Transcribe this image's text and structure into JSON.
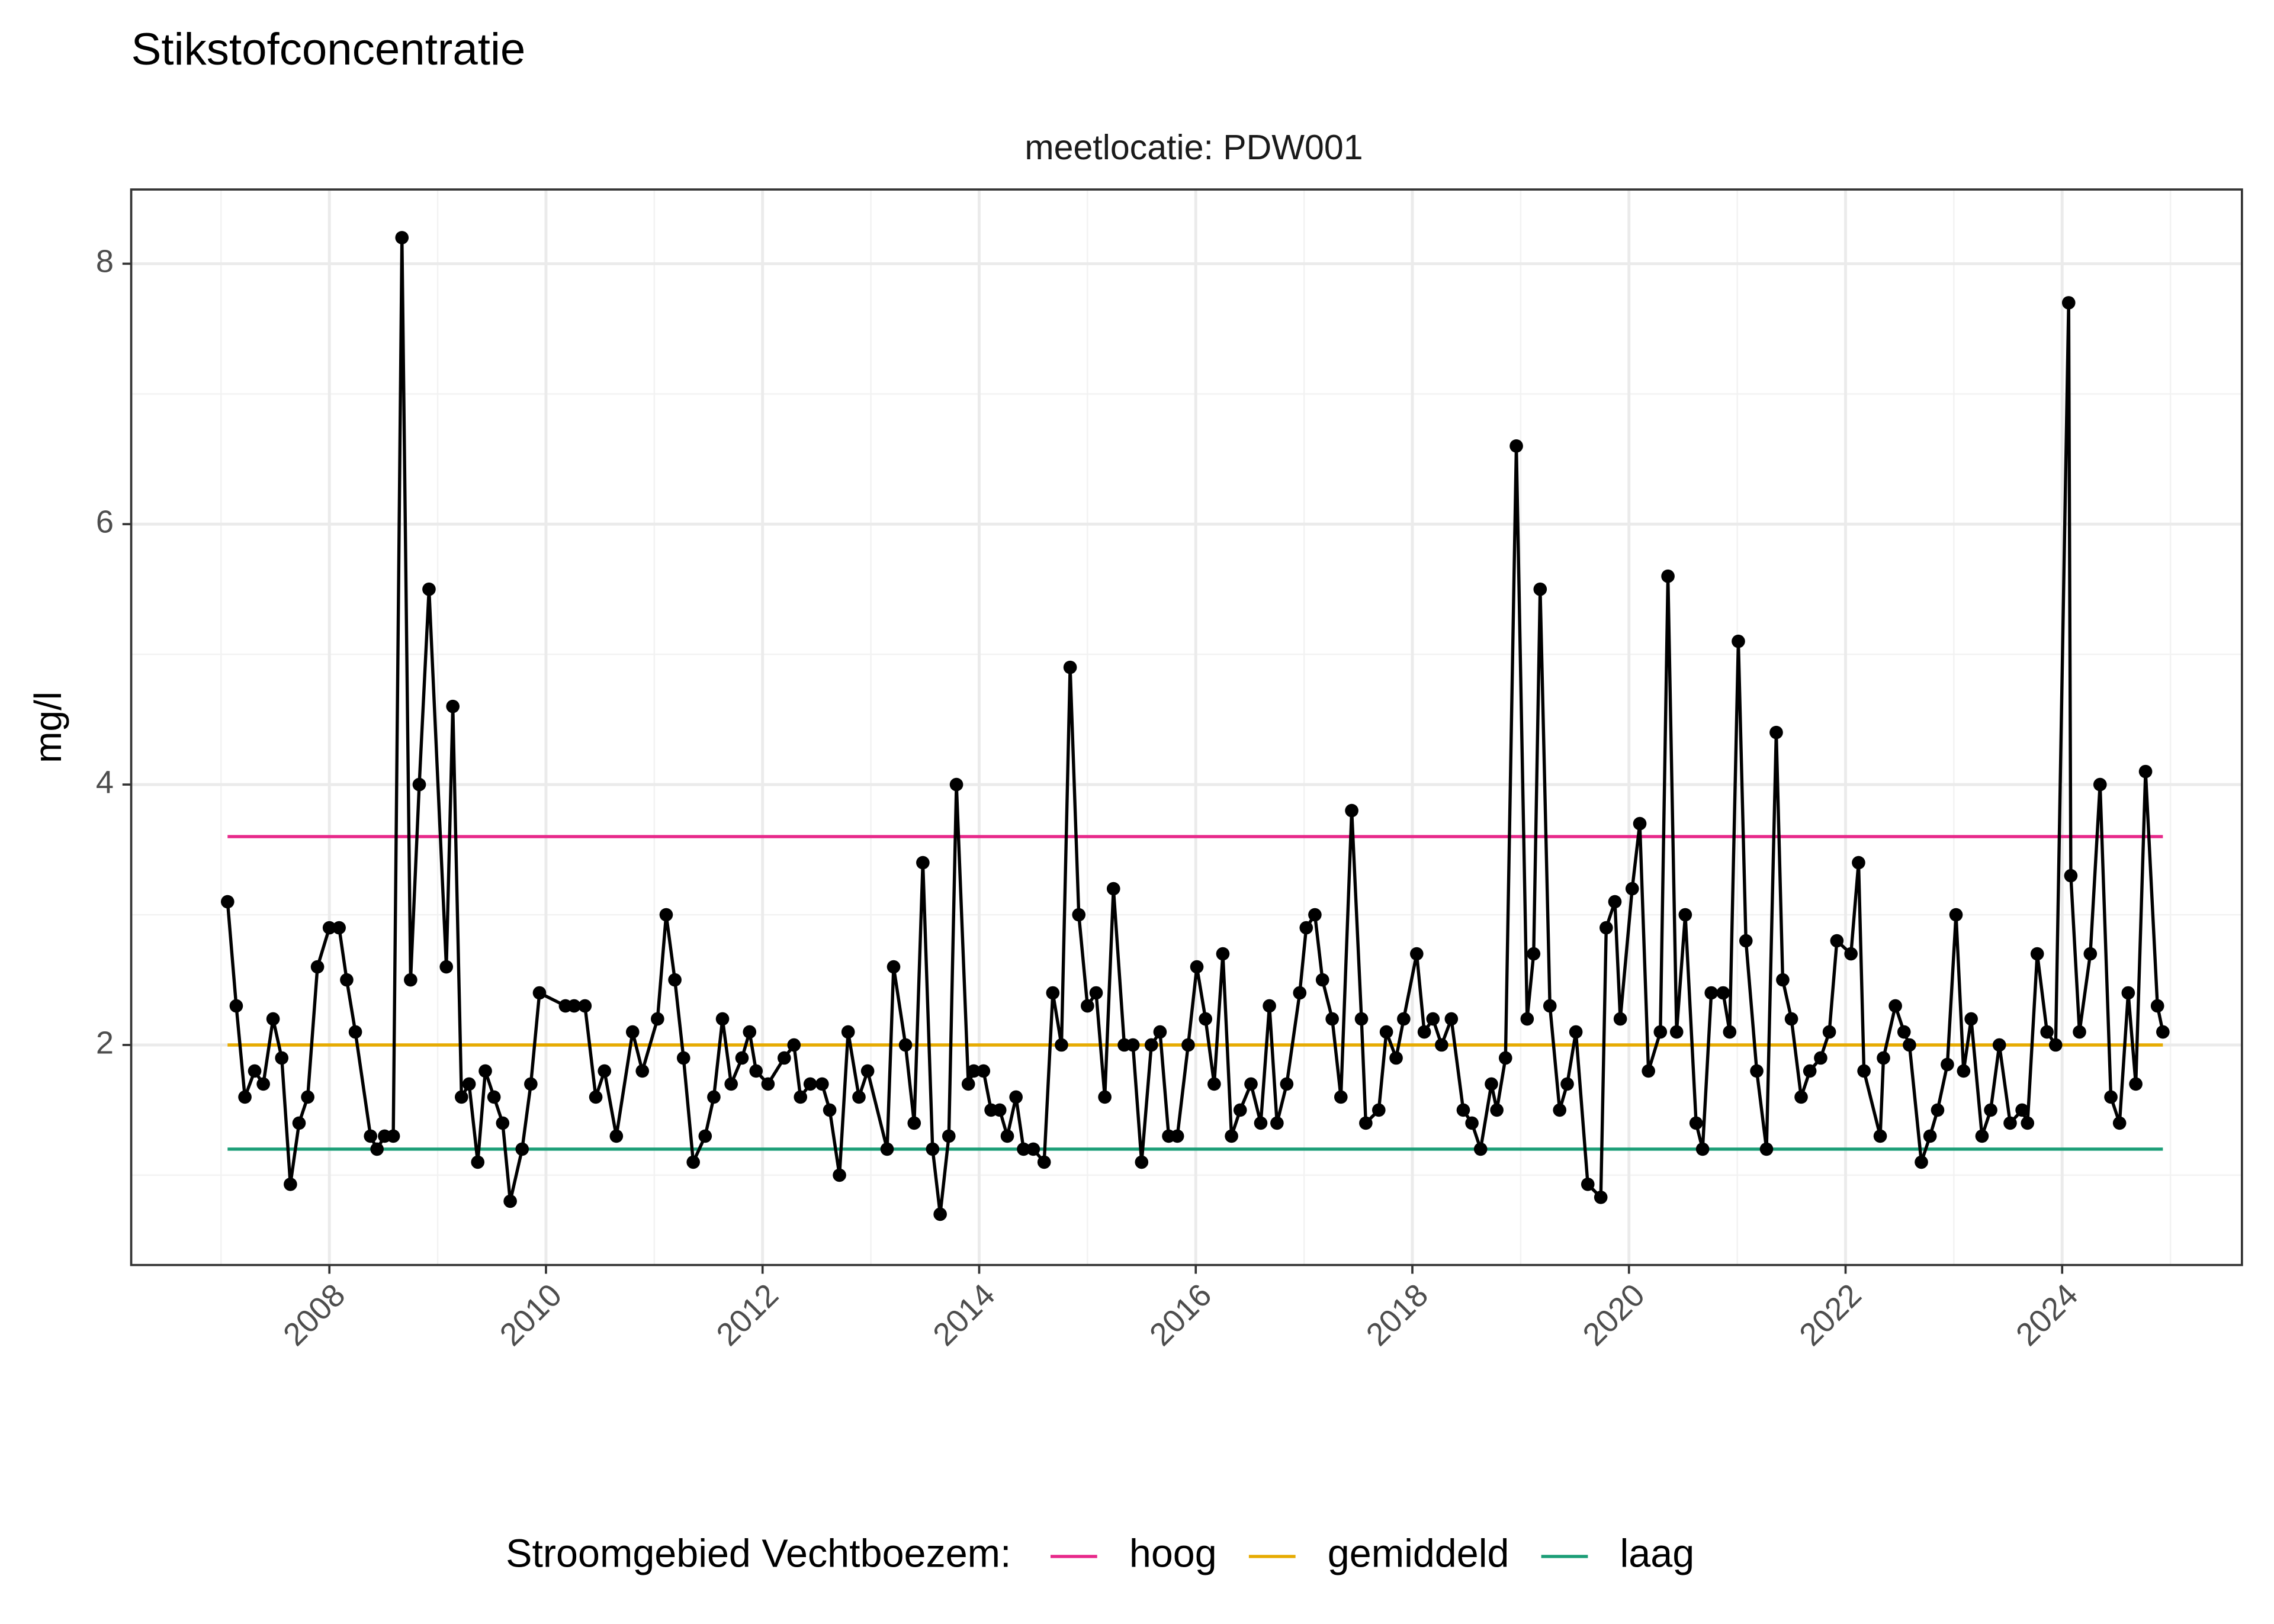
{
  "chart_data": {
    "type": "line",
    "title": "Stikstofconcentratie",
    "subtitle": "meetlocatie: PDW001",
    "y_label": "mg/l",
    "legend_title": "Stroomgebied Vechtboezem:",
    "legend_position": "bottom",
    "grid": true,
    "xlim": [
      2006.17,
      2025.66
    ],
    "ylim": [
      0.31,
      8.57
    ],
    "xticks": [
      2008,
      2010,
      2012,
      2014,
      2016,
      2018,
      2020,
      2022,
      2024
    ],
    "yticks": [
      2,
      4,
      6,
      8
    ],
    "x": [
      2007.06,
      2007.14,
      2007.22,
      2007.31,
      2007.39,
      2007.48,
      2007.56,
      2007.64,
      2007.72,
      2007.8,
      2007.89,
      2008.0,
      2008.09,
      2008.16,
      2008.24,
      2008.38,
      2008.44,
      2008.51,
      2008.59,
      2008.67,
      2008.75,
      2008.83,
      2008.92,
      2009.08,
      2009.14,
      2009.22,
      2009.29,
      2009.37,
      2009.44,
      2009.52,
      2009.6,
      2009.67,
      2009.78,
      2009.86,
      2009.94,
      2010.18,
      2010.26,
      2010.36,
      2010.46,
      2010.54,
      2010.65,
      2010.8,
      2010.89,
      2011.03,
      2011.11,
      2011.19,
      2011.27,
      2011.36,
      2011.47,
      2011.55,
      2011.63,
      2011.71,
      2011.81,
      2011.88,
      2011.94,
      2012.05,
      2012.2,
      2012.29,
      2012.35,
      2012.44,
      2012.55,
      2012.62,
      2012.71,
      2012.79,
      2012.89,
      2012.97,
      2013.15,
      2013.21,
      2013.32,
      2013.4,
      2013.48,
      2013.57,
      2013.64,
      2013.72,
      2013.79,
      2013.9,
      2013.95,
      2014.04,
      2014.11,
      2014.19,
      2014.26,
      2014.34,
      2014.41,
      2014.5,
      2014.6,
      2014.68,
      2014.76,
      2014.84,
      2014.92,
      2015.0,
      2015.08,
      2015.16,
      2015.24,
      2015.34,
      2015.42,
      2015.5,
      2015.59,
      2015.67,
      2015.75,
      2015.83,
      2015.93,
      2016.01,
      2016.09,
      2016.17,
      2016.25,
      2016.33,
      2016.41,
      2016.51,
      2016.6,
      2016.68,
      2016.75,
      2016.84,
      2016.96,
      2017.02,
      2017.1,
      2017.17,
      2017.26,
      2017.34,
      2017.44,
      2017.53,
      2017.57,
      2017.69,
      2017.76,
      2017.85,
      2017.92,
      2018.04,
      2018.11,
      2018.19,
      2018.27,
      2018.36,
      2018.47,
      2018.55,
      2018.63,
      2018.73,
      2018.78,
      2018.86,
      2018.96,
      2019.06,
      2019.12,
      2019.18,
      2019.27,
      2019.36,
      2019.43,
      2019.51,
      2019.62,
      2019.74,
      2019.79,
      2019.87,
      2019.92,
      2020.03,
      2020.1,
      2020.18,
      2020.29,
      2020.36,
      2020.44,
      2020.52,
      2020.62,
      2020.68,
      2020.76,
      2020.87,
      2020.93,
      2021.01,
      2021.08,
      2021.18,
      2021.27,
      2021.36,
      2021.42,
      2021.5,
      2021.59,
      2021.67,
      2021.77,
      2021.85,
      2021.92,
      2022.05,
      2022.12,
      2022.17,
      2022.32,
      2022.35,
      2022.46,
      2022.54,
      2022.59,
      2022.7,
      2022.78,
      2022.85,
      2022.94,
      2023.02,
      2023.09,
      2023.16,
      2023.26,
      2023.34,
      2023.42,
      2023.52,
      2023.63,
      2023.68,
      2023.77,
      2023.86,
      2023.94,
      2024.06,
      2024.08,
      2024.16,
      2024.26,
      2024.35,
      2024.45,
      2024.53,
      2024.61,
      2024.68,
      2024.77,
      2024.88,
      2024.93
    ],
    "series": [
      {
        "color": "#000000",
        "values": [
          3.1,
          2.3,
          1.6,
          1.8,
          1.7,
          2.2,
          1.9,
          0.93,
          1.4,
          1.6,
          2.6,
          2.9,
          2.9,
          2.5,
          2.1,
          1.3,
          1.2,
          1.3,
          1.3,
          8.2,
          2.5,
          4.0,
          5.5,
          2.6,
          4.6,
          1.6,
          1.7,
          1.1,
          1.8,
          1.6,
          1.4,
          0.8,
          1.2,
          1.7,
          2.4,
          2.3,
          2.3,
          2.3,
          1.6,
          1.8,
          1.3,
          2.1,
          1.8,
          2.2,
          3.0,
          2.5,
          1.9,
          1.1,
          1.3,
          1.6,
          2.2,
          1.7,
          1.9,
          2.1,
          1.8,
          1.7,
          1.9,
          2.0,
          1.6,
          1.7,
          1.7,
          1.5,
          1.0,
          2.1,
          1.6,
          1.8,
          1.2,
          2.6,
          2.0,
          1.4,
          3.4,
          1.2,
          0.7,
          1.3,
          4.0,
          1.7,
          1.8,
          1.8,
          1.5,
          1.5,
          1.3,
          1.6,
          1.2,
          1.2,
          1.1,
          2.4,
          2.0,
          4.9,
          3.0,
          2.3,
          2.4,
          1.6,
          3.2,
          2.0,
          2.0,
          1.1,
          2.0,
          2.1,
          1.3,
          1.3,
          2.0,
          2.6,
          2.2,
          1.7,
          2.7,
          1.3,
          1.5,
          1.7,
          1.4,
          2.3,
          1.4,
          1.7,
          2.4,
          2.9,
          3.0,
          2.5,
          2.2,
          1.6,
          3.8,
          2.2,
          1.4,
          1.5,
          2.1,
          1.9,
          2.2,
          2.7,
          2.1,
          2.2,
          2.0,
          2.2,
          1.5,
          1.4,
          1.2,
          1.7,
          1.5,
          1.9,
          6.6,
          2.2,
          2.7,
          5.5,
          2.3,
          1.5,
          1.7,
          2.1,
          0.93,
          0.83,
          2.9,
          3.1,
          2.2,
          3.2,
          3.7,
          1.8,
          2.1,
          5.6,
          2.1,
          3.0,
          1.4,
          1.2,
          2.4,
          2.4,
          2.1,
          5.1,
          2.8,
          1.8,
          1.2,
          4.4,
          2.5,
          2.2,
          1.6,
          1.8,
          1.9,
          2.1,
          2.8,
          2.7,
          3.4,
          1.8,
          1.3,
          1.9,
          2.3,
          2.1,
          2.0,
          1.1,
          1.3,
          1.5,
          1.85,
          3.0,
          1.8,
          2.2,
          1.3,
          1.5,
          2.0,
          1.4,
          1.5,
          1.4,
          2.7,
          2.1,
          2.0,
          7.7,
          3.3,
          2.1,
          2.7,
          4.0,
          1.6,
          1.4,
          2.4,
          1.7,
          4.1,
          2.3,
          2.1
        ]
      }
    ],
    "reference_lines": [
      {
        "name": "hoog",
        "color": "#e7298a",
        "value": 3.6
      },
      {
        "name": "gemiddeld",
        "color": "#e6ab02",
        "value": 2.0
      },
      {
        "name": "laag",
        "color": "#1b9e77",
        "value": 1.2
      }
    ]
  }
}
